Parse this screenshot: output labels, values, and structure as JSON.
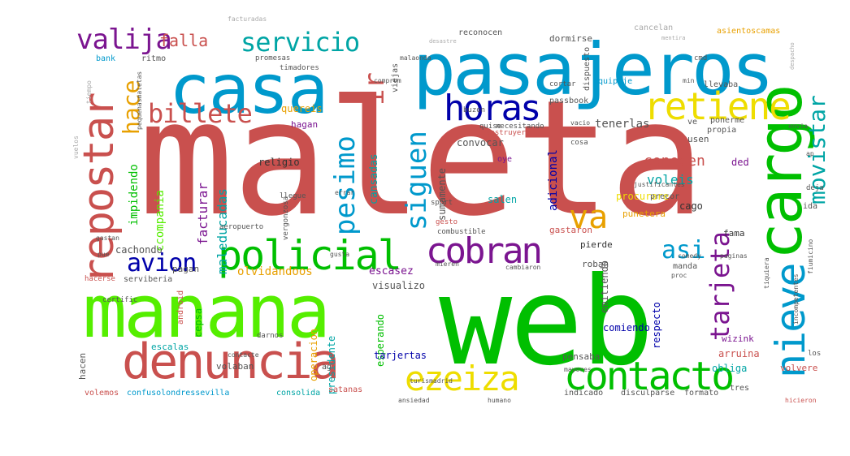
{
  "colors": {
    "red": "#c9504e",
    "green": "#00bf00",
    "lime": "#55ee00",
    "blue": "#0099cc",
    "navy": "#0000aa",
    "purple": "#7b1590",
    "yellow": "#eedd00",
    "orange": "#e8a000",
    "teal": "#00a5a5",
    "gray": "#aaaaaa"
  },
  "words": {
    "maleta": "maleta",
    "web": "web",
    "manana": "manana",
    "pasajeros": "pasajeros",
    "casa": "casa",
    "cargo": "cargo",
    "denuncia": "denuncia",
    "policial": "policial",
    "repostar": "repostar",
    "retiene": "retiene",
    "contacto": "contacto",
    "ezeiza": "ezeiza",
    "nieve": "nieve",
    "cobran": "cobran",
    "horas": "horas",
    "billete": "billete",
    "servicio": "servicio",
    "valija": "valija",
    "movistar": "movistar",
    "tarjeta": "tarjeta",
    "avion": "avion",
    "pesimo": "pesimo",
    "siguen": "siguen",
    "va": "va",
    "hace": "hace",
    "ir": "ir",
    "asi": "asi",
    "falla": "falla",
    "conocen": "conocen",
    "voleis": "voleis",
    "impidendo": "impidendo",
    "facturar": "facturar",
    "maleducadas": "maleducadas",
    "ccompania": "ccompania",
    "religio": "religio",
    "quereis": "quereis",
    "hagan": "hagan",
    "cansadas": "cansadas",
    "sumamente": "sumamente",
    "convocar": "convocar",
    "adicional": "adicional",
    "tenerlas": "tenerlas",
    "usen": "usen",
    "ded": "ded",
    "salen": "salen",
    "procurare": "procurare",
    "cago": "cago",
    "punetera": "punetera",
    "gastaron": "gastaron",
    "fama": "fama",
    "pierde": "pierde",
    "escasez": "escasez",
    "olvidandoos": "olvidandoos",
    "visualizo": "visualizo",
    "cachondo": "cachondo",
    "pagan": "pagan",
    "roban": "roban",
    "manda": "manda",
    "emitiendo": "emitiendo",
    "comiendo": "comiendo",
    "respecto": "respecto",
    "serviberia": "serviberia",
    "android": "android",
    "cepsa": "cepsa",
    "operacion": "operacion",
    "presidente": "presidente",
    "esperando": "esperando",
    "tarjertas": "tarjertas",
    "arruina": "arruina",
    "volvere": "volvere",
    "obliga": "obliga",
    "escalas": "escalas",
    "volaban": "volaban",
    "hacen": "hacen",
    "ag": "ag",
    "volemos": "volemos",
    "confusolondressevilla": "confusolondressevilla",
    "consolida": "consolida",
    "satanas": "satanas",
    "indicado": "indicado",
    "disculparse": "disculparse",
    "formato": "formato",
    "tres": "tres",
    "pensaba": "pensaba",
    "wizink": "wizink",
    "ida": "ida",
    "bank": "bank",
    "ritmo": "ritmo",
    "promesas": "promesas",
    "timadores": "timadores",
    "viejas": "viejas",
    "reconocen": "reconocen",
    "dormirse": "dormirse",
    "cancelan": "cancelan",
    "asientoscamas": "asientoscamas",
    "equipaje": "equipaje",
    "llevaba": "llevaba",
    "passbook": "passbook",
    "ponerme": "ponerme",
    "propia": "propia",
    "ve": "ve",
    "cmd": "cmd",
    "buzon": "buzon",
    "cortar": "cortar",
    "dispuesto": "dispuesto",
    "facturadas": "facturadas",
    "cosa": "cosa",
    "oye": "oye",
    "precor": "precor",
    "sport": "sport",
    "gesto": "gesto",
    "combustible": "combustible",
    "vergonzosa": "vergonzosa",
    "llegue": "llegue",
    "certific": "certific",
    "aeropuerto": "aeropuerto",
    "darnos": "darnos",
    "deja": "deja",
    "justificantes": "justificantes",
    "hacerse": "hacerse",
    "pue": "pue",
    "gastan": "gastan",
    "quise": "quise",
    "necesitando": "necesitando",
    "destruyeron": "destruyeron",
    "min": "min",
    "ap": "ap",
    "comedy": "comedy",
    "los": "los",
    "mayores": "mayores",
    "ansiedad": "ansiedad",
    "contacte": "contacte",
    "humano": "humano",
    "turismadrid": "turismadrid",
    "proc": "proc",
    "paginas": "paginas",
    "envia": "envia",
    "comprom": "comprom",
    "malaonda": "malaonda",
    "incompetentes": "incompetentes",
    "hicieron": "hicieron",
    "mieren": "mieren",
    "cambiaron": "cambiaron",
    "vacio": "vacio",
    "gusta": "gusta",
    "errar": "errar",
    "desastre": "desastre",
    "mentira": "mentira",
    "pequenasmaletas": "pequenasmaletas",
    "tiquiera": "tiquiera",
    "fiumicino": "fiumicino",
    "tiempo": "tiempo",
    "vuelos": "vuelos",
    "despacho": "despacho"
  }
}
